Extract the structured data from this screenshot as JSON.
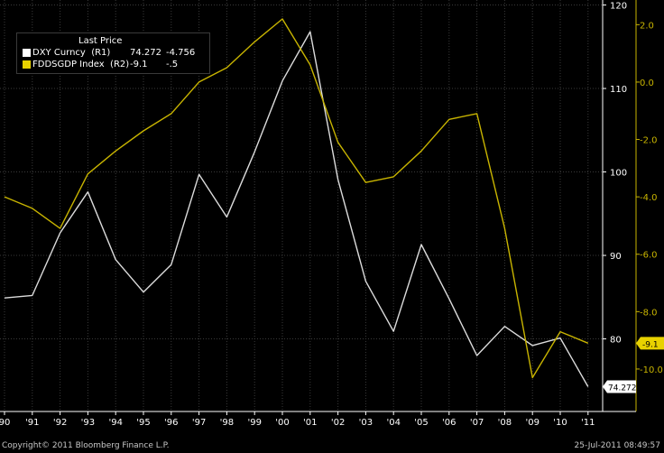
{
  "chart_data": {
    "type": "line",
    "x": [
      "90",
      "91",
      "92",
      "93",
      "94",
      "95",
      "96",
      "97",
      "98",
      "99",
      "00",
      "01",
      "02",
      "03",
      "04",
      "05",
      "06",
      "07",
      "08",
      "09",
      "10",
      "11"
    ],
    "x_tick_labels": [
      "90",
      "'91",
      "'92",
      "'93",
      "'94",
      "'95",
      "'96",
      "'97",
      "'98",
      "'99",
      "'00",
      "'01",
      "'02",
      "'03",
      "'04",
      "'05",
      "'06",
      "'07",
      "'08",
      "'09",
      "'10",
      "'11"
    ],
    "legend_title": "Last Price",
    "legend_position": "top-left",
    "grid": true,
    "series": [
      {
        "name": "DXY Curncy  (R1)",
        "axis": "right-inner",
        "color": "#dcdcdc",
        "last": "74.272",
        "change": "-4.756",
        "values": [
          84.9,
          85.2,
          92.7,
          97.6,
          89.5,
          85.6,
          88.9,
          99.7,
          94.6,
          102.4,
          110.9,
          116.8,
          99.1,
          86.9,
          80.9,
          91.3,
          84.8,
          78.0,
          81.5,
          79.2,
          80.1,
          74.272
        ]
      },
      {
        "name": "FDDSGDP Index  (R2)",
        "axis": "right-outer",
        "color": "#c8b400",
        "last": "-9.1",
        "change": "-.5",
        "values": [
          -4.0,
          -4.4,
          -5.1,
          -3.2,
          -2.4,
          -1.7,
          -1.1,
          0.0,
          0.5,
          1.4,
          2.2,
          0.6,
          -2.1,
          -3.5,
          -3.3,
          -2.4,
          -1.3,
          -1.1,
          -5.1,
          -10.3,
          -8.7,
          -9.1
        ]
      }
    ],
    "y_left_ticks": [
      "120",
      "110",
      "100",
      "90",
      "80"
    ],
    "y_right_ticks": [
      "2.0",
      "0.0",
      "-2.0",
      "-4.0",
      "-6.0",
      "-8.0",
      "-10.0"
    ],
    "ylim_left": [
      71.3,
      120.6
    ],
    "ylim_right": [
      -11.48,
      2.86
    ],
    "last_labels": {
      "dxy": "74.272",
      "fdd": "-9.1"
    }
  },
  "footer": {
    "copyright": "Copyright© 2011 Bloomberg Finance L.P.",
    "timestamp": "25-Jul-2011 08:49:57"
  },
  "colors": {
    "background": "#000000",
    "grid": "#3a3a3a",
    "dxy": "#dcdcdc",
    "fdd": "#c8b400"
  }
}
